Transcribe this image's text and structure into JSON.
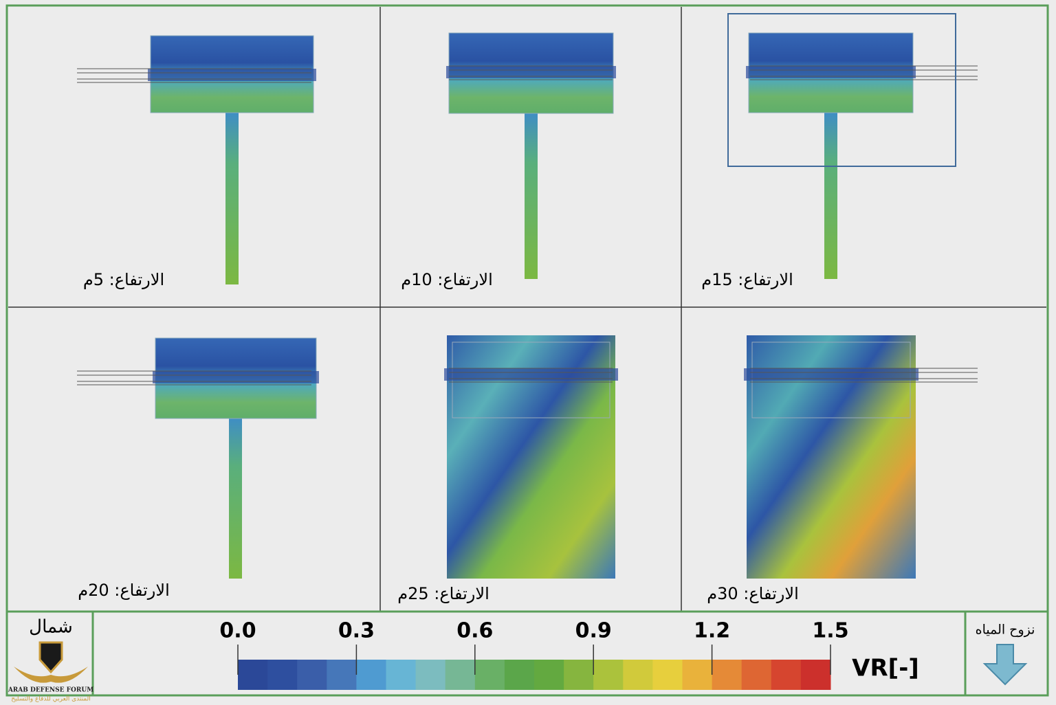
{
  "panels": [
    {
      "label": "الارتفاع: 5م"
    },
    {
      "label": "الارتفاع: 10م"
    },
    {
      "label": "الارتفاع: 15م"
    },
    {
      "label": "الارتفاع: 20م"
    },
    {
      "label": "الارتفاع: 25م"
    },
    {
      "label": "الارتفاع: 30م"
    }
  ],
  "north_label": "شمال",
  "logo": {
    "title": "ARAB DEFENSE FORUM",
    "subtitle": "المنتدى العربي للدفاع والتسليح"
  },
  "flow_label": "نزوح المياه",
  "colorbar": {
    "title": "VR[-]",
    "range": [
      0,
      1.5
    ],
    "ticks": [
      {
        "value": 0,
        "label": "0.0"
      },
      0.3,
      0.6,
      0.9,
      1.2,
      1.5
    ],
    "colors": [
      "#2b4898",
      "#2e4f9f",
      "#3a5ea9",
      "#4677b9",
      "#4f9bd1",
      "#67b5d5",
      "#7cbcbf",
      "#76b795",
      "#69b066",
      "#5ba64a",
      "#63a940",
      "#86b53f",
      "#abc23c",
      "#d1ca3b",
      "#e7cf3d",
      "#e9b23b",
      "#e58a37",
      "#de6633",
      "#d6452f",
      "#cc302c"
    ]
  }
}
